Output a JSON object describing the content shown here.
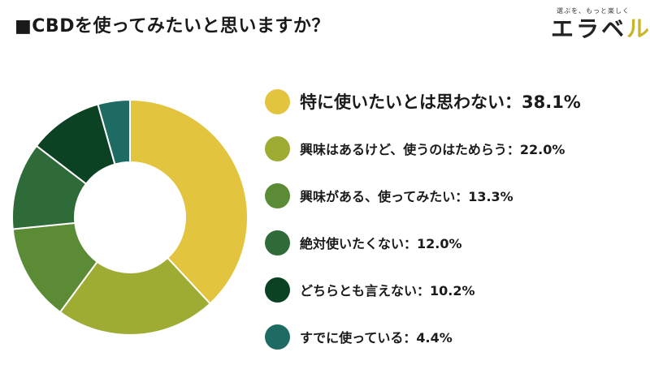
{
  "header": {
    "title": "■CBDを使ってみたいと思いますか？"
  },
  "logo": {
    "tagline": "選ぶを、もっと楽しく",
    "wordmark_main": "エラベ",
    "wordmark_accent": "ル"
  },
  "chart_data": {
    "type": "pie",
    "donut": true,
    "title": "■CBDを使ってみたいと思いますか？",
    "start": "top, clockwise",
    "slices": [
      {
        "label": "特に使いたいとは思わない：38.1%",
        "value": 38.1,
        "color": "#e3c43f"
      },
      {
        "label": "興味はあるけど、使うのはためらう：22.0%",
        "value": 22.0,
        "color": "#9eac34"
      },
      {
        "label": "興味がある、使ってみたい：13.3%",
        "value": 13.3,
        "color": "#5b8c35"
      },
      {
        "label": "絶対使いたくない：12.0%",
        "value": 12.0,
        "color": "#2f6a39"
      },
      {
        "label": "どちらとも言えない：10.2%",
        "value": 10.2,
        "color": "#0c4224"
      },
      {
        "label": "すでに使っている：4.4%",
        "value": 4.4,
        "color": "#1e6b63"
      }
    ]
  }
}
